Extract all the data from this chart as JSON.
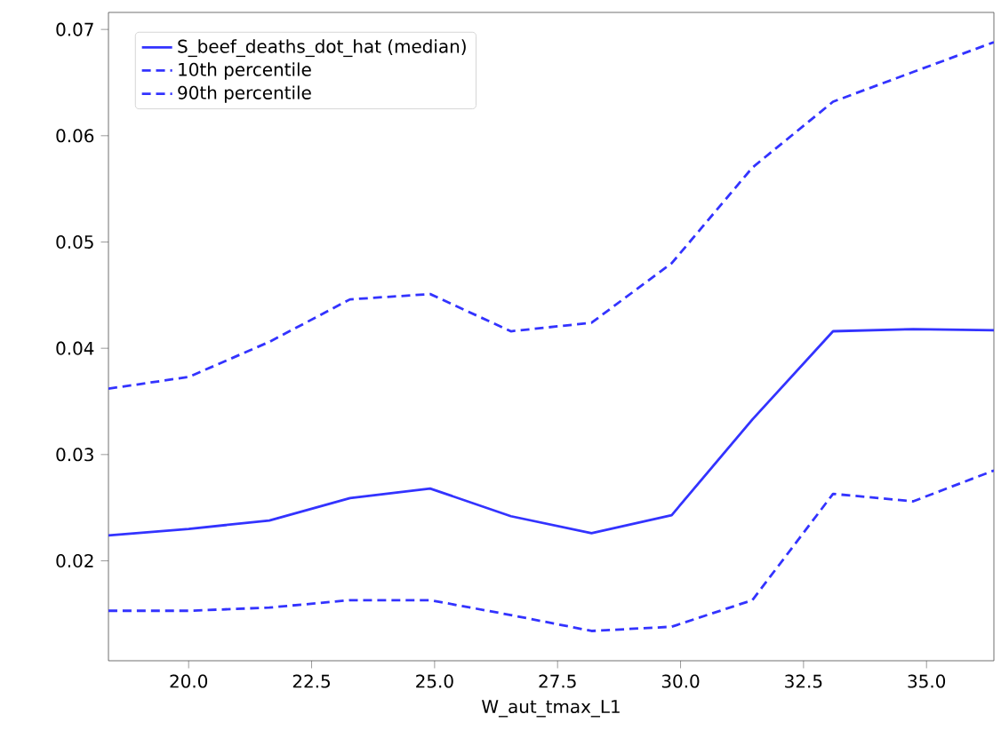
{
  "chart_data": {
    "type": "line",
    "xlabel": "W_aut_tmax_L1",
    "x": [
      18.37,
      20.0,
      21.64,
      23.28,
      24.91,
      26.55,
      28.19,
      29.82,
      31.46,
      33.1,
      34.73,
      36.37
    ],
    "series": [
      {
        "name": "S_beef_deaths_dot_hat (median)",
        "color": "#3333ff",
        "line_style": "solid",
        "values": [
          0.0224,
          0.023,
          0.0238,
          0.0259,
          0.0268,
          0.0242,
          0.0226,
          0.0243,
          0.0333,
          0.0416,
          0.0418,
          0.0417
        ]
      },
      {
        "name": "10th percentile",
        "color": "#3333ff",
        "line_style": "dashed",
        "values": [
          0.0153,
          0.0153,
          0.0156,
          0.0163,
          0.0163,
          0.0149,
          0.0134,
          0.0138,
          0.0163,
          0.0263,
          0.0256,
          0.0285
        ]
      },
      {
        "name": "90th percentile",
        "color": "#3333ff",
        "line_style": "dashed",
        "values": [
          0.0362,
          0.0373,
          0.0406,
          0.0446,
          0.0451,
          0.0416,
          0.0424,
          0.048,
          0.057,
          0.0632,
          0.066,
          0.0688
        ]
      }
    ],
    "xlim": [
      18.37,
      36.37
    ],
    "ylim": [
      0.0106,
      0.0716
    ],
    "xticks": [
      {
        "value": 20,
        "label": "20.0"
      },
      {
        "value": 22.5,
        "label": "22.5"
      },
      {
        "value": 25,
        "label": "25.0"
      },
      {
        "value": 27.5,
        "label": "27.5"
      },
      {
        "value": 30,
        "label": "30.0"
      },
      {
        "value": 32.5,
        "label": "32.5"
      },
      {
        "value": 35,
        "label": "35.0"
      }
    ],
    "yticks": [
      0.02,
      0.03,
      0.04,
      0.05,
      0.06,
      0.07
    ],
    "legend": "top left",
    "grid": false,
    "marker": "none"
  }
}
